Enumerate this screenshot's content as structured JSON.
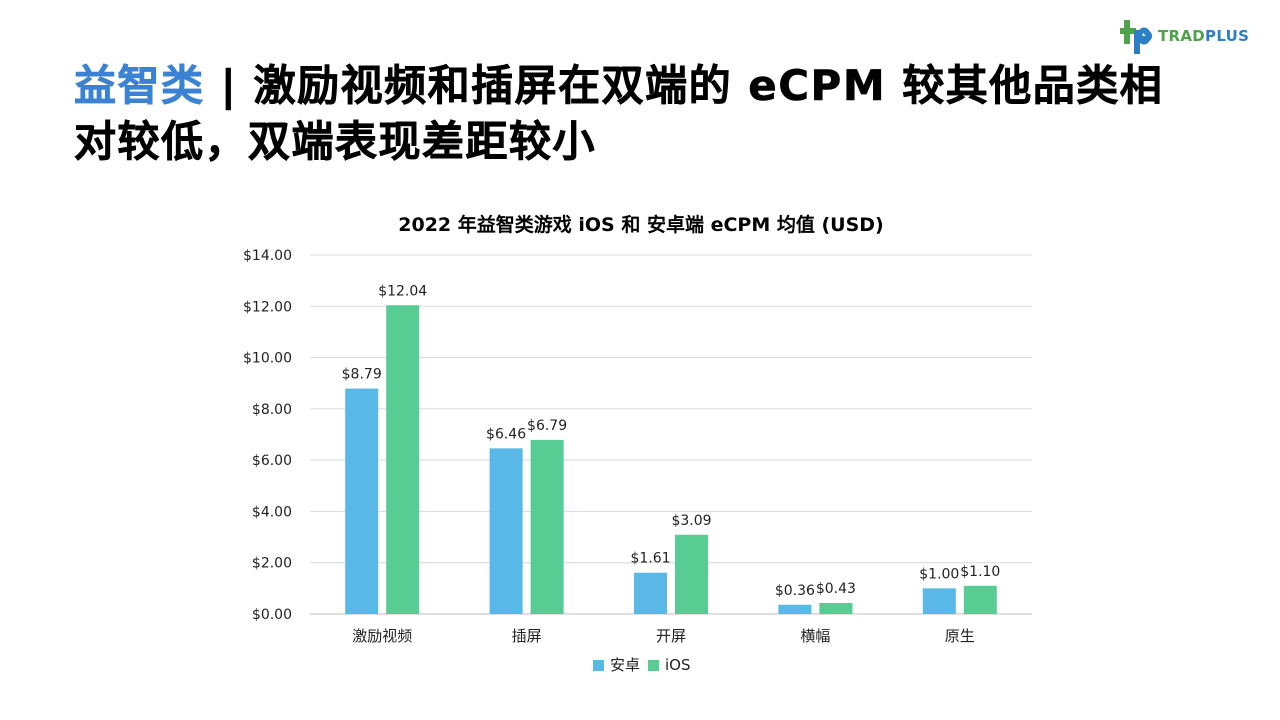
{
  "brand": {
    "logo_text_1": "TRAD",
    "logo_text_2": "PLUS",
    "color_green": "#4ea24b",
    "color_blue": "#2d7fc3"
  },
  "slide": {
    "title_accent": "益智类",
    "title_separator": " | ",
    "title_rest": "激励视频和插屏在双端的 eCPM 较其他品类相对较低，双端表现差距较小",
    "accent_color": "#3b82d4"
  },
  "chart_data": {
    "type": "bar",
    "title": "2022 年益智类游戏 iOS 和 安卓端 eCPM 均值 (USD)",
    "categories": [
      "激励视频",
      "插屏",
      "开屏",
      "横幅",
      "原生"
    ],
    "series": [
      {
        "name": "安卓",
        "color": "#5ab8e6",
        "values": [
          8.79,
          6.46,
          1.61,
          0.36,
          1.0
        ],
        "labels": [
          "$8.79",
          "$6.46",
          "$1.61",
          "$0.36",
          "$1.00"
        ]
      },
      {
        "name": "iOS",
        "color": "#57cc93",
        "values": [
          12.04,
          6.79,
          3.09,
          0.43,
          1.1
        ],
        "labels": [
          "$12.04",
          "$6.79",
          "$3.09",
          "$0.43",
          "$1.10"
        ]
      }
    ],
    "ylim": [
      0,
      14
    ],
    "yticks": [
      0,
      2,
      4,
      6,
      8,
      10,
      12,
      14
    ],
    "ytick_labels": [
      "$0.00",
      "$2.00",
      "$4.00",
      "$6.00",
      "$8.00",
      "$10.00",
      "$12.00",
      "$14.00"
    ],
    "grid": true,
    "legend_position": "bottom"
  }
}
